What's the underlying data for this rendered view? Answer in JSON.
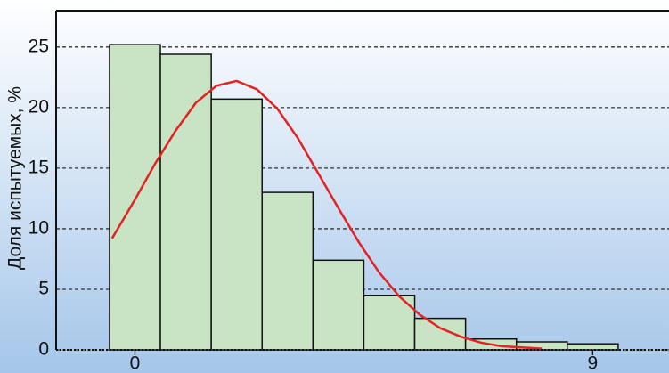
{
  "chart_data": {
    "type": "histogram",
    "ylabel": "Доля испытуемых, %",
    "bins": [
      -0.5,
      0.5,
      1.5,
      2.5,
      3.5,
      4.5,
      5.5,
      6.5,
      7.5,
      8.5,
      9.5
    ],
    "counts": [
      25.2,
      24.4,
      20.7,
      13.0,
      7.4,
      4.5,
      2.6,
      0.9,
      0.66,
      0.5
    ],
    "color": "#c9e4c5",
    "curve": {
      "color": "#e32222",
      "x": [
        -0.45,
        0,
        0.4,
        0.8,
        1.2,
        1.6,
        2.0,
        2.4,
        2.8,
        3.2,
        3.6,
        4.0,
        4.4,
        4.8,
        5.2,
        5.6,
        6.0,
        6.4,
        6.8,
        7.2,
        7.6,
        8.0
      ],
      "values": [
        9.2,
        12.4,
        15.4,
        18.1,
        20.4,
        21.8,
        22.2,
        21.5,
        19.9,
        17.5,
        14.6,
        11.7,
        8.9,
        6.4,
        4.4,
        2.9,
        1.8,
        1.1,
        0.6,
        0.3,
        0.2,
        0.1
      ]
    },
    "xlim": [
      -1.55,
      10.5
    ],
    "xticks": [
      0,
      9
    ],
    "ylim": [
      0,
      28
    ],
    "yticks": [
      0,
      5,
      10,
      15,
      20,
      25
    ],
    "grid": true
  }
}
